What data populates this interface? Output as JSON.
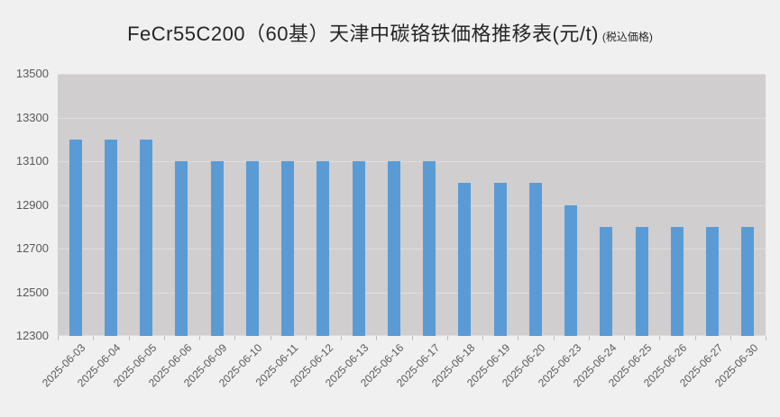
{
  "title": {
    "main": "FeCr55C200（60基）天津中碳铬铁価格推移表(元/t)",
    "suffix": "(税込価格)"
  },
  "chart_data": {
    "type": "bar",
    "title": "FeCr55C200（60基）天津中碳铬铁価格推移表(元/t) (税込価格)",
    "categories": [
      "2025-06-03",
      "2025-06-04",
      "2025-06-05",
      "2025-06-06",
      "2025-06-09",
      "2025-06-10",
      "2025-06-11",
      "2025-06-12",
      "2025-06-13",
      "2025-06-16",
      "2025-06-17",
      "2025-06-18",
      "2025-06-19",
      "2025-06-20",
      "2025-06-23",
      "2025-06-24",
      "2025-06-25",
      "2025-06-26",
      "2025-06-27",
      "2025-06-30"
    ],
    "values": [
      13200,
      13200,
      13200,
      13100,
      13100,
      13100,
      13100,
      13100,
      13100,
      13100,
      13100,
      13000,
      13000,
      13000,
      12900,
      12800,
      12800,
      12800,
      12800,
      12800
    ],
    "xlabel": "",
    "ylabel": "",
    "ylim": [
      12300,
      13500
    ],
    "yticks": [
      13500,
      13300,
      13100,
      12900,
      12700,
      12500,
      12300
    ],
    "grid": true,
    "legend": "none",
    "colors": {
      "bar": "#5B9BD5",
      "plot_background": "#D0CECE",
      "page_background": "#F0F0F0",
      "gridline": "#DFDDDD",
      "title_text": "#262626",
      "axis_text": "#595959",
      "tick": "#BFBFBF"
    }
  }
}
